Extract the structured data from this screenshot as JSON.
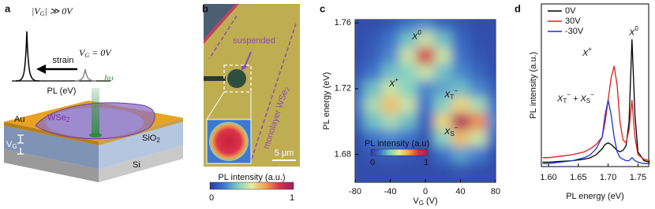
{
  "panel_labels": [
    "a",
    "b",
    "c",
    "d"
  ],
  "schematic": {
    "inset_high": [
      {
        "text": "|V",
        "style": "it"
      },
      {
        "text": "G",
        "style": "sub"
      },
      {
        "text": "| ≫ 0V",
        "style": "it"
      }
    ],
    "inset_zero": [
      {
        "text": "V",
        "style": "it"
      },
      {
        "text": "G",
        "style": "sub"
      },
      {
        "text": " = 0V",
        "style": "it"
      }
    ],
    "strain": "strain",
    "axis_label": "PL (eV)",
    "photon": "hυ",
    "au": "Au",
    "wse2": [
      {
        "text": "WSe"
      },
      {
        "text": "2",
        "style": "sub"
      }
    ],
    "sio2": [
      {
        "text": "SiO"
      },
      {
        "text": "2",
        "style": "sub"
      }
    ],
    "si": "Si",
    "vg": [
      {
        "text": "V"
      },
      {
        "text": "G",
        "style": "sub"
      }
    ]
  },
  "micrograph": {
    "suspended": "suspended",
    "monolayer": [
      {
        "text": "monolayer WSe"
      },
      {
        "text": "2",
        "style": "sub"
      }
    ],
    "scale_bar": "5 μm",
    "colorbar_label": "PL intensity (a.u.)",
    "colorbar_ticks": [
      0,
      1
    ]
  },
  "chart_data": [
    {
      "type": "heatmap",
      "x": [
        -80,
        -60,
        -40,
        -20,
        0,
        20,
        40,
        60,
        80
      ],
      "y": [
        1.76,
        1.75,
        1.74,
        1.73,
        1.72,
        1.71,
        1.7,
        1.69,
        1.68,
        1.67
      ],
      "z": [
        [
          0.05,
          0.05,
          0.08,
          0.15,
          0.2,
          0.12,
          0.08,
          0.05,
          0.05
        ],
        [
          0.05,
          0.08,
          0.15,
          0.3,
          0.45,
          0.3,
          0.12,
          0.06,
          0.05
        ],
        [
          0.05,
          0.1,
          0.2,
          0.45,
          0.85,
          0.45,
          0.15,
          0.08,
          0.05
        ],
        [
          0.08,
          0.15,
          0.3,
          0.35,
          0.45,
          0.3,
          0.2,
          0.12,
          0.06
        ],
        [
          0.12,
          0.3,
          0.45,
          0.35,
          0.2,
          0.25,
          0.3,
          0.2,
          0.1
        ],
        [
          0.15,
          0.4,
          0.6,
          0.45,
          0.15,
          0.35,
          0.55,
          0.4,
          0.15
        ],
        [
          0.1,
          0.3,
          0.4,
          0.3,
          0.1,
          0.55,
          0.95,
          0.7,
          0.2
        ],
        [
          0.06,
          0.15,
          0.2,
          0.15,
          0.08,
          0.35,
          0.6,
          0.45,
          0.12
        ],
        [
          0.05,
          0.08,
          0.1,
          0.08,
          0.05,
          0.15,
          0.25,
          0.18,
          0.06
        ],
        [
          0.05,
          0.05,
          0.05,
          0.05,
          0.05,
          0.06,
          0.08,
          0.06,
          0.05
        ]
      ],
      "colormap": [
        "#2a3a9a",
        "#3f78cf",
        "#7fcfc4",
        "#e9ea98",
        "#f2a04c",
        "#d8324a",
        "#9c1f62"
      ],
      "xlim": [
        -80,
        80
      ],
      "ylim": [
        1.663,
        1.762
      ],
      "xticks": [
        -80,
        -40,
        0,
        40,
        80
      ],
      "yticks": [
        1.68,
        1.72,
        1.76
      ],
      "xlabel": [
        {
          "text": "V"
        },
        {
          "text": "G",
          "style": "sub"
        },
        {
          "text": " (V)"
        }
      ],
      "ylabel": "PL energy (eV)",
      "colorbar": {
        "label": "PL intensity (a.u)",
        "ticks": [
          0,
          1
        ]
      },
      "annotations": [
        [
          {
            "text": "X",
            "style": "it"
          },
          {
            "text": "0",
            "style": "sup"
          }
        ],
        [
          {
            "text": "X",
            "style": "it"
          },
          {
            "text": "+",
            "style": "sup"
          }
        ],
        [
          {
            "text": "X",
            "style": "it"
          },
          {
            "text": "T",
            "style": "sub"
          },
          {
            "text": "−",
            "style": "sup"
          }
        ],
        [
          {
            "text": "X",
            "style": "it"
          },
          {
            "text": "S",
            "style": "sub"
          },
          {
            "text": "−",
            "style": "sup"
          }
        ]
      ]
    },
    {
      "type": "line",
      "x": [
        1.59,
        1.6,
        1.62,
        1.64,
        1.66,
        1.67,
        1.68,
        1.69,
        1.695,
        1.7,
        1.705,
        1.71,
        1.715,
        1.72,
        1.725,
        1.73,
        1.735,
        1.74,
        1.745,
        1.75,
        1.76,
        1.77
      ],
      "series": [
        {
          "name": "0V",
          "color": "#000000",
          "values": [
            0.03,
            0.03,
            0.035,
            0.04,
            0.05,
            0.06,
            0.08,
            0.12,
            0.15,
            0.16,
            0.15,
            0.13,
            0.11,
            0.1,
            0.11,
            0.14,
            0.3,
            0.86,
            0.35,
            0.1,
            0.04,
            0.03
          ]
        },
        {
          "name": "30V",
          "color": "#e01b1b",
          "values": [
            0.06,
            0.06,
            0.07,
            0.08,
            0.1,
            0.12,
            0.15,
            0.2,
            0.3,
            0.45,
            0.6,
            0.68,
            0.55,
            0.3,
            0.18,
            0.16,
            0.25,
            0.45,
            0.2,
            0.08,
            0.05,
            0.04
          ]
        },
        {
          "name": "-30V",
          "color": "#1f2ee0",
          "values": [
            0.02,
            0.02,
            0.03,
            0.04,
            0.06,
            0.08,
            0.12,
            0.2,
            0.35,
            0.45,
            0.35,
            0.2,
            0.1,
            0.06,
            0.05,
            0.04,
            0.04,
            0.06,
            0.04,
            0.03,
            0.02,
            0.02
          ]
        }
      ],
      "xlim": [
        1.588,
        1.768
      ],
      "ylim": [
        0,
        1.1
      ],
      "xticks": [
        {
          "value": 1.6,
          "label": "1.60"
        },
        1.65,
        {
          "value": 1.7,
          "label": "1.70"
        },
        1.75
      ],
      "xlabel": "PL energy (eV)",
      "ylabel": "PL intensity (a.u.)",
      "legend": "upper left",
      "annotations": [
        [
          {
            "text": "X",
            "style": "it"
          },
          {
            "text": "0",
            "style": "sup"
          }
        ],
        [
          {
            "text": "X",
            "style": "it"
          },
          {
            "text": "+",
            "style": "sup"
          }
        ],
        [
          {
            "text": "X",
            "style": "it"
          },
          {
            "text": "T",
            "style": "sub"
          },
          {
            "text": "−",
            "style": "sup"
          },
          {
            "text": " + ",
            "style": "it"
          },
          {
            "text": "X",
            "style": "it"
          },
          {
            "text": "S",
            "style": "sub"
          },
          {
            "text": "−",
            "style": "sup"
          }
        ]
      ]
    }
  ]
}
